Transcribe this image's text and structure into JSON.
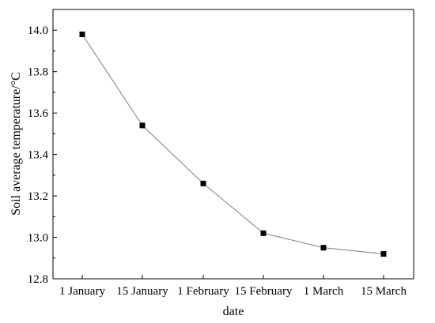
{
  "chart_data": {
    "type": "line",
    "title": "",
    "xlabel": "date",
    "ylabel": "Soil average temperature/°C",
    "categories": [
      "1 January",
      "15 January",
      "1 February",
      "15 February",
      "1 March",
      "15 March"
    ],
    "series": [
      {
        "values": [
          13.98,
          13.54,
          13.26,
          13.02,
          12.95,
          12.92
        ]
      }
    ],
    "ylim": [
      12.8,
      14.1
    ],
    "yticks": [
      12.8,
      13.0,
      13.2,
      13.4,
      13.6,
      13.8,
      14.0
    ],
    "ytick_labels": [
      "12.8",
      "13.0",
      "13.2",
      "13.4",
      "13.6",
      "13.8",
      "14.0"
    ],
    "grid": false,
    "legend": "none",
    "line_color": "#7f7f7f",
    "marker_color": "#000000",
    "marker": "square"
  }
}
